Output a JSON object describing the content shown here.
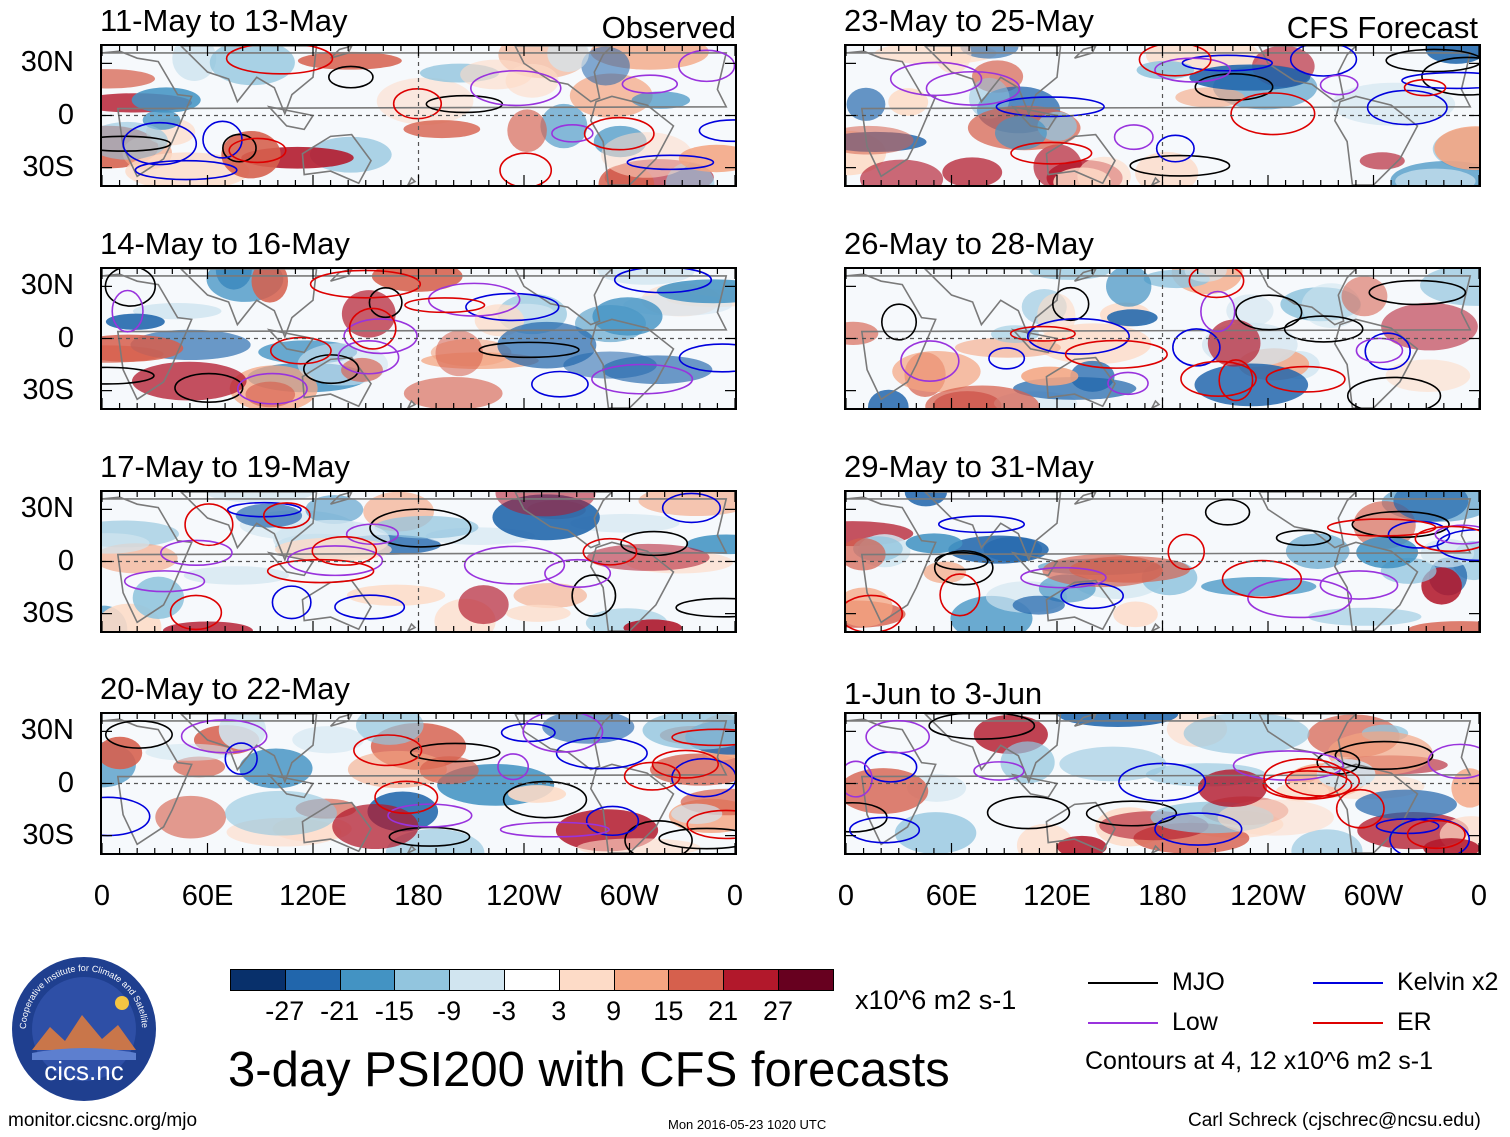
{
  "title": "3-day PSI200 with CFS forecasts",
  "observed_label": "Observed",
  "forecast_label": "CFS Forecast",
  "chart_data": {
    "type": "heatmap",
    "variable": "3-day PSI200 anomaly",
    "units": "x10^6 m2 s-1",
    "colorbar": {
      "levels": [
        -27,
        -21,
        -15,
        -9,
        -3,
        3,
        9,
        15,
        21,
        27
      ],
      "labels": [
        "-27",
        "-21",
        "-15",
        "-9",
        "-3",
        "3",
        "9",
        "15",
        "21",
        "27"
      ],
      "colors": [
        "#08306b",
        "#2166ac",
        "#4393c3",
        "#92c5de",
        "#d1e5f0",
        "#ffffff",
        "#fddbc7",
        "#f4a582",
        "#d6604d",
        "#b2182b",
        "#67001f"
      ]
    },
    "x_ticks": [
      "0",
      "60E",
      "120E",
      "180",
      "120W",
      "60W",
      "0"
    ],
    "y_ticks": [
      "30N",
      "0",
      "30S"
    ],
    "contours": {
      "levels_text": "Contours at 4, 12 x10^6 m2 s-1",
      "legend": [
        {
          "name": "MJO",
          "color": "#000000"
        },
        {
          "name": "Kelvin x2",
          "color": "#0000dd"
        },
        {
          "name": "Low",
          "color": "#9933dd"
        },
        {
          "name": "ER",
          "color": "#dd0000"
        }
      ]
    },
    "panels": [
      {
        "period": "11-May to 13-May",
        "type": "Observed"
      },
      {
        "period": "14-May to 16-May",
        "type": "Observed"
      },
      {
        "period": "17-May to 19-May",
        "type": "Observed"
      },
      {
        "period": "20-May to 22-May",
        "type": "Observed"
      },
      {
        "period": "23-May to 25-May",
        "type": "CFS Forecast"
      },
      {
        "period": "26-May to 28-May",
        "type": "CFS Forecast"
      },
      {
        "period": "29-May to 31-May",
        "type": "CFS Forecast"
      },
      {
        "period": "1-Jun to 3-Jun",
        "type": "CFS Forecast"
      }
    ]
  },
  "logo": {
    "text": "cics.nc",
    "ring_text": "Cooperative Institute for Climate and Satellites"
  },
  "footer": {
    "url": "monitor.cicsnc.org/mjo",
    "timestamp": "Mon 2016-05-23 1020 UTC",
    "author": "Carl Schreck (cjschrec@ncsu.edu)"
  }
}
